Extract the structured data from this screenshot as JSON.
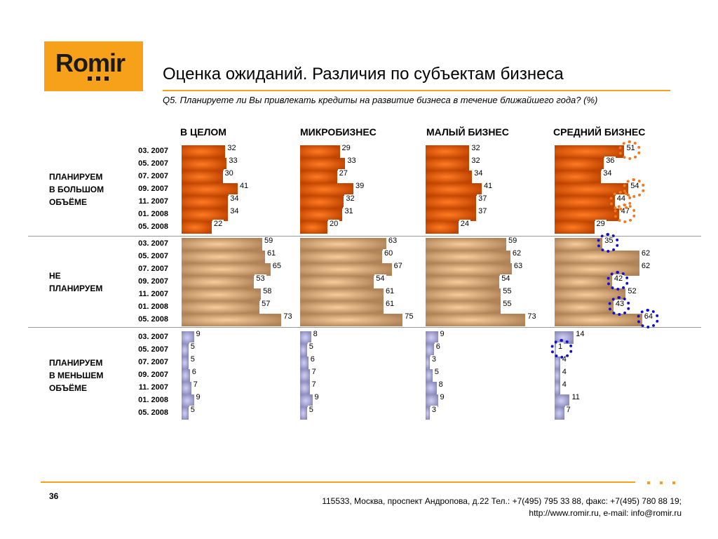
{
  "logo_text": "Romir",
  "title": "Оценка ожиданий. Различия по субъектам бизнеса",
  "subtitle": "Q5. Планируете ли Вы привлекать кредиты на развитие бизнеса в течение ближайшего года? (%)",
  "footer": {
    "page_number": "36",
    "address": "115533, Москва, проспект Андропова, д.22   Тел.: +7(495) 795 33 88, факс: +7(495) 780 88 19;",
    "contacts": "http://www.romir.ru, e-mail: info@romir.ru"
  },
  "chart_data": {
    "type": "bar",
    "orientation": "horizontal",
    "unit": "%",
    "dates": [
      "03. 2007",
      "05. 2007",
      "07. 2007",
      "09. 2007",
      "11. 2007",
      "01. 2008",
      "05. 2008"
    ],
    "columns": [
      "В ЦЕЛОМ",
      "МИКРОБИЗНЕС",
      "МАЛЫЙ БИЗНЕС",
      "СРЕДНИЙ БИЗНЕС"
    ],
    "groups": [
      {
        "label": [
          "ПЛАНИРУЕМ",
          "В БОЛЬШОМ",
          "ОБЪЁМЕ"
        ],
        "color": "#e85c0c",
        "values": [
          [
            32,
            33,
            30,
            41,
            34,
            34,
            22
          ],
          [
            29,
            33,
            27,
            39,
            32,
            31,
            20
          ],
          [
            32,
            32,
            34,
            41,
            37,
            37,
            24
          ],
          [
            51,
            36,
            34,
            54,
            44,
            47,
            29
          ]
        ]
      },
      {
        "label": [
          "НЕ",
          "ПЛАНИРУЕМ"
        ],
        "color": "#d9a878",
        "values": [
          [
            59,
            61,
            65,
            53,
            58,
            57,
            73
          ],
          [
            63,
            60,
            67,
            54,
            61,
            61,
            75
          ],
          [
            59,
            62,
            63,
            54,
            55,
            55,
            73
          ],
          [
            35,
            62,
            62,
            42,
            52,
            43,
            64
          ]
        ]
      },
      {
        "label": [
          "ПЛАНИРУЕМ",
          "В МЕНЬШЕМ",
          "ОБЪЁМЕ"
        ],
        "color": "#a8a8d8",
        "values": [
          [
            9,
            5,
            5,
            6,
            7,
            9,
            5
          ],
          [
            8,
            5,
            6,
            7,
            7,
            9,
            5
          ],
          [
            9,
            6,
            3,
            5,
            8,
            9,
            3
          ],
          [
            14,
            1,
            4,
            4,
            4,
            11,
            7
          ]
        ]
      }
    ],
    "highlights": [
      {
        "group": 0,
        "column": 3,
        "indices": [
          0,
          3,
          4,
          5
        ],
        "color": "#f07820"
      },
      {
        "group": 1,
        "column": 3,
        "indices": [
          0,
          3,
          5,
          6
        ],
        "color": "#1010d0"
      },
      {
        "group": 2,
        "column": 3,
        "indices": [
          1
        ],
        "color": "#1010d0"
      }
    ]
  }
}
